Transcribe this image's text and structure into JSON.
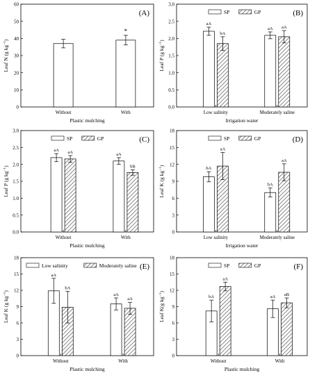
{
  "chart_data": [
    {
      "type": "bar",
      "panel": "(A)",
      "xlabel": "Plastic mulching",
      "ylabel": "Leaf N (g kg",
      "ylabel_sup": "−1",
      "ylim": [
        0,
        60
      ],
      "yticks": [
        "0",
        "10",
        "20",
        "30",
        "40",
        "50",
        "60"
      ],
      "categories": [
        "Without",
        "With"
      ],
      "legend": [],
      "series": [
        {
          "pattern": "open",
          "values": [
            37,
            39
          ],
          "errors": [
            2.5,
            2.8
          ],
          "labels": [
            "",
            "*"
          ]
        }
      ]
    },
    {
      "type": "bar",
      "panel": "(B)",
      "xlabel": "Irrigation water",
      "ylabel": "Leaf P (g kg",
      "ylabel_sup": "−1",
      "ylim": [
        0,
        3.0
      ],
      "yticks": [
        "0.0",
        "0.5",
        "1.0",
        "1.5",
        "2.0",
        "2.5",
        "3.0"
      ],
      "categories": [
        "Low salinity",
        "Moderately saline"
      ],
      "legend": [
        "SP",
        "GP"
      ],
      "series": [
        {
          "name": "SP",
          "pattern": "open",
          "values": [
            2.21,
            2.09
          ],
          "errors": [
            0.12,
            0.1
          ],
          "labels": [
            "aA",
            "aA"
          ]
        },
        {
          "name": "GP",
          "pattern": "hatch",
          "values": [
            1.85,
            2.05
          ],
          "errors": [
            0.2,
            0.18
          ],
          "labels": [
            "bA",
            "aA"
          ]
        }
      ]
    },
    {
      "type": "bar",
      "panel": "(C)",
      "xlabel": "Plastic mulching",
      "ylabel": "Leaf P (g kg",
      "ylabel_sup": "−1",
      "ylim": [
        0,
        3.0
      ],
      "yticks": [
        "0.0",
        "0.5",
        "1.0",
        "1.5",
        "2.0",
        "2.5",
        "3.0"
      ],
      "categories": [
        "Without",
        "With"
      ],
      "legend": [
        "SP",
        "GP"
      ],
      "series": [
        {
          "name": "SP",
          "pattern": "open",
          "values": [
            2.2,
            2.1
          ],
          "errors": [
            0.12,
            0.1
          ],
          "labels": [
            "aA",
            "aA"
          ]
        },
        {
          "name": "GP",
          "pattern": "hatch",
          "values": [
            2.16,
            1.76
          ],
          "errors": [
            0.1,
            0.08
          ],
          "labels": [
            "aA",
            "bB"
          ]
        }
      ]
    },
    {
      "type": "bar",
      "panel": "(D)",
      "xlabel": "Irrigation water",
      "ylabel": "Leaf K (g kg",
      "ylabel_sup": "−1",
      "ylim": [
        0,
        18
      ],
      "yticks": [
        "0",
        "3",
        "6",
        "9",
        "12",
        "15",
        "18"
      ],
      "categories": [
        "Low salinity",
        "Moderately saline"
      ],
      "legend": [
        "SP",
        "GP"
      ],
      "series": [
        {
          "name": "SP",
          "pattern": "open",
          "values": [
            9.8,
            7.0
          ],
          "errors": [
            0.9,
            0.8
          ],
          "labels": [
            "bA",
            "bA"
          ]
        },
        {
          "name": "GP",
          "pattern": "hatch",
          "values": [
            11.7,
            10.6
          ],
          "errors": [
            2.4,
            1.5
          ],
          "labels": [
            "aA",
            "aA"
          ]
        }
      ]
    },
    {
      "type": "bar",
      "panel": "(E)",
      "xlabel": "Plastic mulching",
      "ylabel": "Leaf K (g kg",
      "ylabel_sup": "−1",
      "ylim": [
        0,
        18
      ],
      "yticks": [
        "0",
        "3",
        "6",
        "9",
        "12",
        "15",
        "18"
      ],
      "categories": [
        "Without",
        "With"
      ],
      "legend": [
        "Low salinity",
        "Moderately saline"
      ],
      "series": [
        {
          "name": "Low salinity",
          "pattern": "open",
          "values": [
            11.9,
            9.5
          ],
          "errors": [
            2.3,
            1.1
          ],
          "labels": [
            "aA",
            "aA"
          ]
        },
        {
          "name": "Moderately saline",
          "pattern": "hatch",
          "values": [
            8.9,
            8.7
          ],
          "errors": [
            2.9,
            1.1
          ],
          "labels": [
            "bA",
            "aA"
          ]
        }
      ]
    },
    {
      "type": "bar",
      "panel": "(F)",
      "xlabel": "Plastic mulching",
      "ylabel": "Leaf K(g kg",
      "ylabel_sup": "−1",
      "ylim": [
        0,
        18
      ],
      "yticks": [
        "0",
        "3",
        "6",
        "9",
        "12",
        "15",
        "18"
      ],
      "categories": [
        "Without",
        "With"
      ],
      "legend": [
        "SP",
        "GP"
      ],
      "series": [
        {
          "name": "SP",
          "pattern": "open",
          "values": [
            8.2,
            8.6
          ],
          "errors": [
            2.0,
            1.6
          ],
          "labels": [
            "bA",
            "aA"
          ]
        },
        {
          "name": "GP",
          "pattern": "hatch",
          "values": [
            12.7,
            9.7
          ],
          "errors": [
            0.8,
            0.9
          ],
          "labels": [
            "aA",
            "aB"
          ]
        }
      ]
    }
  ]
}
